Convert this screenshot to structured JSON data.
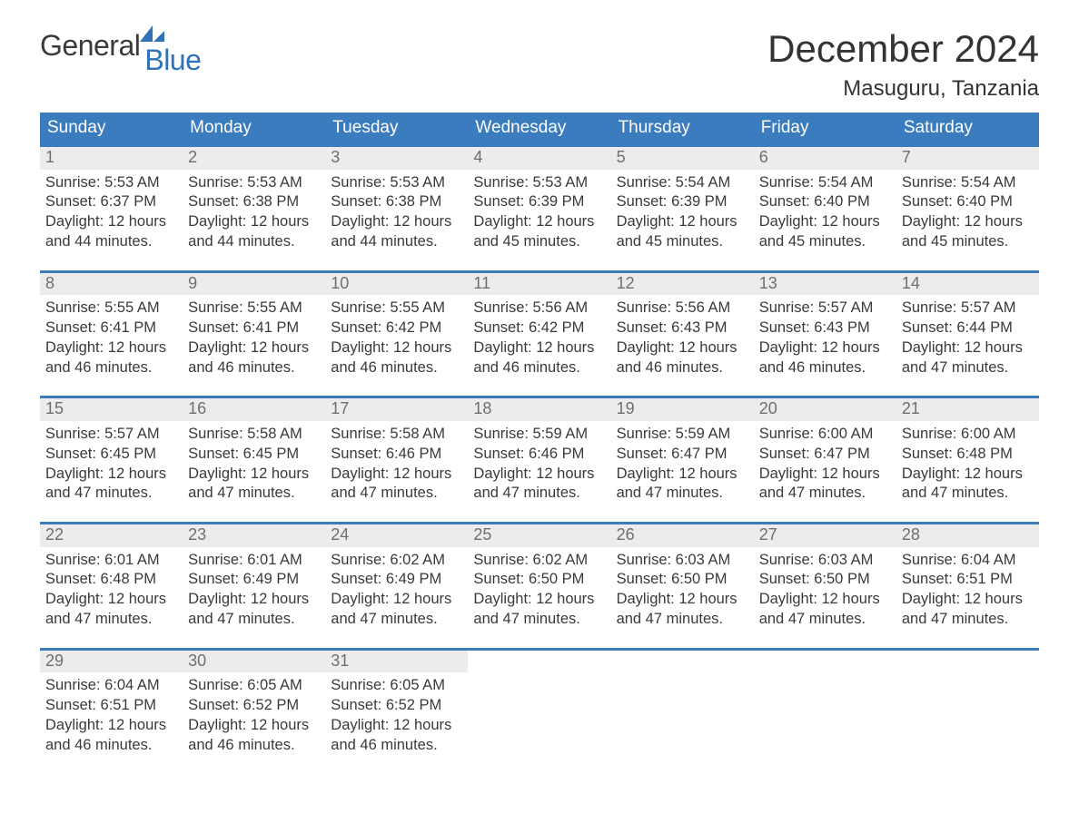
{
  "logo": {
    "part1": "General",
    "part2": "Blue"
  },
  "title": "December 2024",
  "location": "Masuguru, Tanzania",
  "colors": {
    "header_bg": "#3a7cbd",
    "header_text": "#ffffff",
    "daynum_bg": "#ececec",
    "daynum_text": "#6f6f6f",
    "body_text": "#3a3a3a",
    "logo_accent": "#2f72b7",
    "week_border": "#3a7cbd"
  },
  "weekdays": [
    "Sunday",
    "Monday",
    "Tuesday",
    "Wednesday",
    "Thursday",
    "Friday",
    "Saturday"
  ],
  "labels": {
    "sunrise": "Sunrise",
    "sunset": "Sunset",
    "daylight": "Daylight"
  },
  "weeks": [
    [
      {
        "n": "1",
        "sunrise": "5:53 AM",
        "sunset": "6:37 PM",
        "daylight": "12 hours and 44 minutes."
      },
      {
        "n": "2",
        "sunrise": "5:53 AM",
        "sunset": "6:38 PM",
        "daylight": "12 hours and 44 minutes."
      },
      {
        "n": "3",
        "sunrise": "5:53 AM",
        "sunset": "6:38 PM",
        "daylight": "12 hours and 44 minutes."
      },
      {
        "n": "4",
        "sunrise": "5:53 AM",
        "sunset": "6:39 PM",
        "daylight": "12 hours and 45 minutes."
      },
      {
        "n": "5",
        "sunrise": "5:54 AM",
        "sunset": "6:39 PM",
        "daylight": "12 hours and 45 minutes."
      },
      {
        "n": "6",
        "sunrise": "5:54 AM",
        "sunset": "6:40 PM",
        "daylight": "12 hours and 45 minutes."
      },
      {
        "n": "7",
        "sunrise": "5:54 AM",
        "sunset": "6:40 PM",
        "daylight": "12 hours and 45 minutes."
      }
    ],
    [
      {
        "n": "8",
        "sunrise": "5:55 AM",
        "sunset": "6:41 PM",
        "daylight": "12 hours and 46 minutes."
      },
      {
        "n": "9",
        "sunrise": "5:55 AM",
        "sunset": "6:41 PM",
        "daylight": "12 hours and 46 minutes."
      },
      {
        "n": "10",
        "sunrise": "5:55 AM",
        "sunset": "6:42 PM",
        "daylight": "12 hours and 46 minutes."
      },
      {
        "n": "11",
        "sunrise": "5:56 AM",
        "sunset": "6:42 PM",
        "daylight": "12 hours and 46 minutes."
      },
      {
        "n": "12",
        "sunrise": "5:56 AM",
        "sunset": "6:43 PM",
        "daylight": "12 hours and 46 minutes."
      },
      {
        "n": "13",
        "sunrise": "5:57 AM",
        "sunset": "6:43 PM",
        "daylight": "12 hours and 46 minutes."
      },
      {
        "n": "14",
        "sunrise": "5:57 AM",
        "sunset": "6:44 PM",
        "daylight": "12 hours and 47 minutes."
      }
    ],
    [
      {
        "n": "15",
        "sunrise": "5:57 AM",
        "sunset": "6:45 PM",
        "daylight": "12 hours and 47 minutes."
      },
      {
        "n": "16",
        "sunrise": "5:58 AM",
        "sunset": "6:45 PM",
        "daylight": "12 hours and 47 minutes."
      },
      {
        "n": "17",
        "sunrise": "5:58 AM",
        "sunset": "6:46 PM",
        "daylight": "12 hours and 47 minutes."
      },
      {
        "n": "18",
        "sunrise": "5:59 AM",
        "sunset": "6:46 PM",
        "daylight": "12 hours and 47 minutes."
      },
      {
        "n": "19",
        "sunrise": "5:59 AM",
        "sunset": "6:47 PM",
        "daylight": "12 hours and 47 minutes."
      },
      {
        "n": "20",
        "sunrise": "6:00 AM",
        "sunset": "6:47 PM",
        "daylight": "12 hours and 47 minutes."
      },
      {
        "n": "21",
        "sunrise": "6:00 AM",
        "sunset": "6:48 PM",
        "daylight": "12 hours and 47 minutes."
      }
    ],
    [
      {
        "n": "22",
        "sunrise": "6:01 AM",
        "sunset": "6:48 PM",
        "daylight": "12 hours and 47 minutes."
      },
      {
        "n": "23",
        "sunrise": "6:01 AM",
        "sunset": "6:49 PM",
        "daylight": "12 hours and 47 minutes."
      },
      {
        "n": "24",
        "sunrise": "6:02 AM",
        "sunset": "6:49 PM",
        "daylight": "12 hours and 47 minutes."
      },
      {
        "n": "25",
        "sunrise": "6:02 AM",
        "sunset": "6:50 PM",
        "daylight": "12 hours and 47 minutes."
      },
      {
        "n": "26",
        "sunrise": "6:03 AM",
        "sunset": "6:50 PM",
        "daylight": "12 hours and 47 minutes."
      },
      {
        "n": "27",
        "sunrise": "6:03 AM",
        "sunset": "6:50 PM",
        "daylight": "12 hours and 47 minutes."
      },
      {
        "n": "28",
        "sunrise": "6:04 AM",
        "sunset": "6:51 PM",
        "daylight": "12 hours and 47 minutes."
      }
    ],
    [
      {
        "n": "29",
        "sunrise": "6:04 AM",
        "sunset": "6:51 PM",
        "daylight": "12 hours and 46 minutes."
      },
      {
        "n": "30",
        "sunrise": "6:05 AM",
        "sunset": "6:52 PM",
        "daylight": "12 hours and 46 minutes."
      },
      {
        "n": "31",
        "sunrise": "6:05 AM",
        "sunset": "6:52 PM",
        "daylight": "12 hours and 46 minutes."
      },
      null,
      null,
      null,
      null
    ]
  ]
}
